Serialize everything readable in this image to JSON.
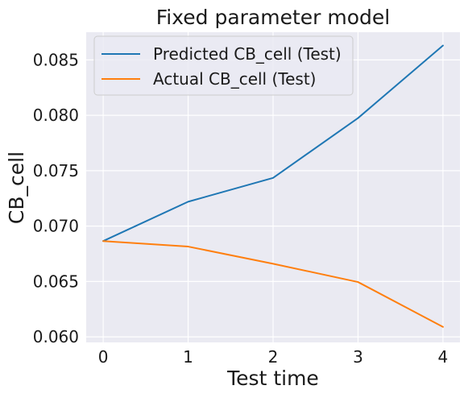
{
  "chart_data": {
    "type": "line",
    "title": "Fixed parameter model",
    "xlabel": "Test time",
    "ylabel": "CB_cell",
    "x": [
      0,
      1,
      2,
      3,
      4
    ],
    "xticks": [
      0,
      1,
      2,
      3,
      4
    ],
    "xlim": [
      -0.2,
      4.2
    ],
    "yticks": [
      0.06,
      0.065,
      0.07,
      0.075,
      0.08,
      0.085
    ],
    "ytick_labels": [
      "0.060",
      "0.065",
      "0.070",
      "0.075",
      "0.080",
      "0.085"
    ],
    "ylim": [
      0.0595,
      0.0875
    ],
    "grid": true,
    "legend_position": "top-left",
    "series": [
      {
        "name": "Predicted CB_cell (Test)",
        "color": "#1f77b4",
        "values": [
          0.06865,
          0.0722,
          0.07435,
          0.07975,
          0.0863
        ]
      },
      {
        "name": "Actual CB_cell (Test)",
        "color": "#ff7f0e",
        "values": [
          0.06865,
          0.06815,
          0.0666,
          0.06495,
          0.0609
        ]
      }
    ],
    "colors": {
      "plot_background": "#eaeaf2",
      "grid": "#ffffff"
    }
  }
}
